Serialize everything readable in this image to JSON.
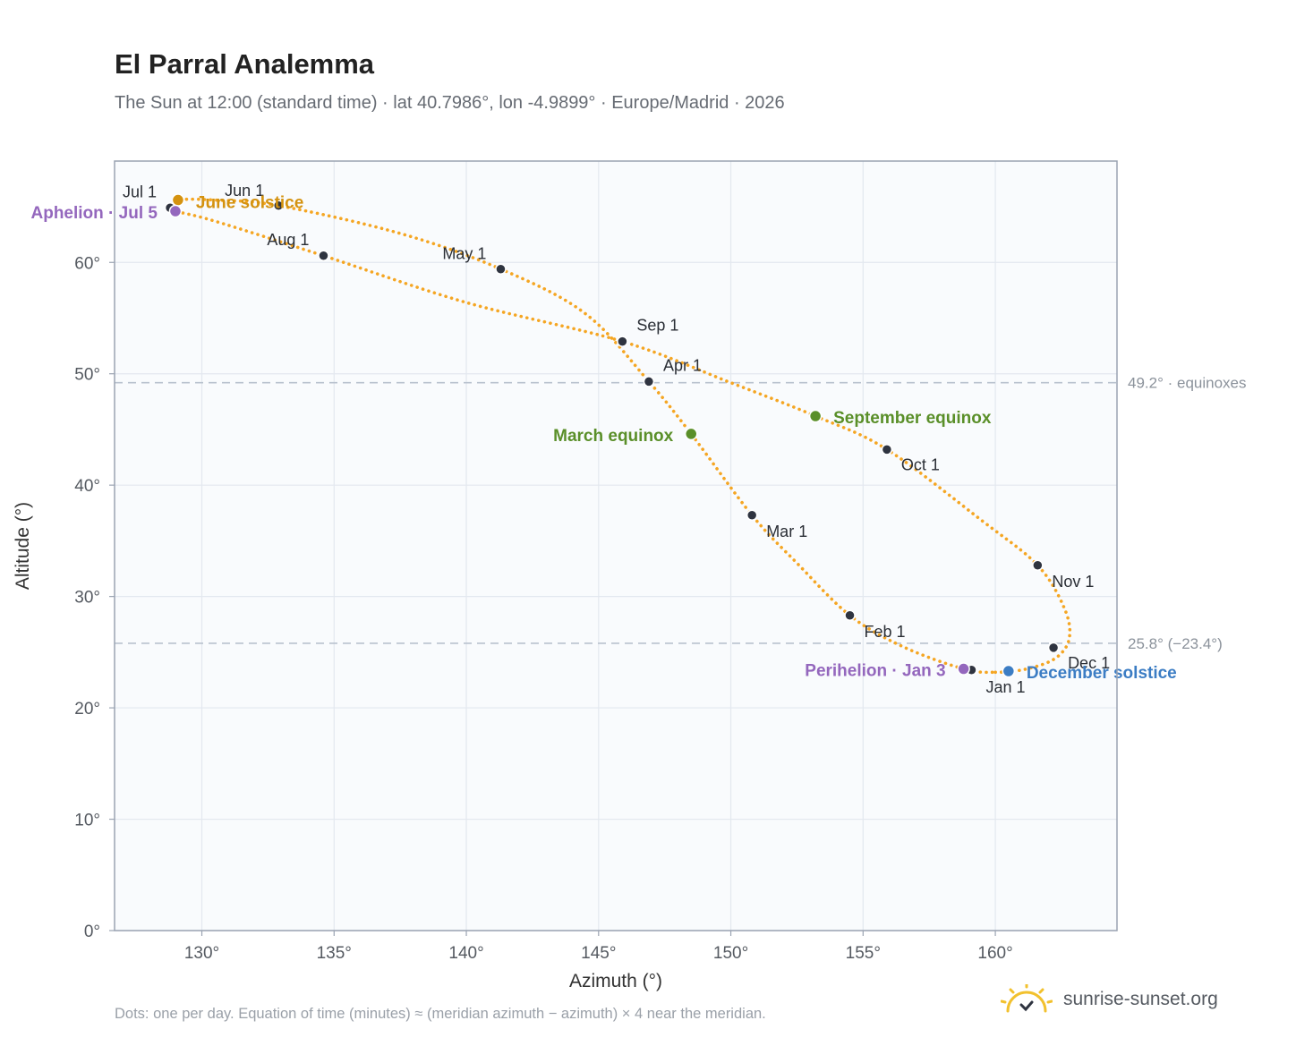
{
  "header": {
    "title": "El Parral Analemma",
    "subtitle": "The Sun at 12:00 (standard time) · lat 40.7986°, lon -4.9899° · Europe/Madrid · 2026"
  },
  "footer": {
    "note": "Dots: one per day. Equation of time (minutes) ≈ (meridian azimuth − azimuth) × 4 near the meridian.",
    "brand": "sunrise-sunset.org"
  },
  "colors": {
    "curve": "#f5a623",
    "month_dot": "#2f3440",
    "equinox": "#5a8f29",
    "june_solstice": "#d4920f",
    "december_solstice": "#3c7dc4",
    "apsis": "#9467bd",
    "brand_sun": "#f2c12e"
  },
  "chart_data": {
    "type": "scatter",
    "xlabel": "Azimuth (°)",
    "ylabel": "Altitude (°)",
    "xlim": [
      126.7,
      164.6
    ],
    "ylim": [
      0,
      69.1
    ],
    "xticks": [
      130,
      135,
      140,
      145,
      150,
      155,
      160
    ],
    "yticks": [
      0,
      10,
      20,
      30,
      40,
      50,
      60
    ],
    "grid": true,
    "reference_lines": [
      {
        "y": 49.2,
        "label": "49.2° · equinoxes"
      },
      {
        "y": 25.8,
        "label": "25.8° (−23.4°)"
      }
    ],
    "month_markers": [
      {
        "label": "Jan 1",
        "az": 159.1,
        "alt": 23.4
      },
      {
        "label": "Feb 1",
        "az": 154.5,
        "alt": 28.3
      },
      {
        "label": "Mar 1",
        "az": 150.8,
        "alt": 37.3
      },
      {
        "label": "Apr 1",
        "az": 146.9,
        "alt": 49.3
      },
      {
        "label": "May 1",
        "az": 141.3,
        "alt": 59.4
      },
      {
        "label": "Jun 1",
        "az": 132.9,
        "alt": 65.1
      },
      {
        "label": "Jul 1",
        "az": 128.8,
        "alt": 64.9
      },
      {
        "label": "Aug 1",
        "az": 134.6,
        "alt": 60.6
      },
      {
        "label": "Sep 1",
        "az": 145.9,
        "alt": 52.9
      },
      {
        "label": "Oct 1",
        "az": 155.9,
        "alt": 43.2
      },
      {
        "label": "Nov 1",
        "az": 161.6,
        "alt": 32.8
      },
      {
        "label": "Dec 1",
        "az": 162.2,
        "alt": 25.4
      }
    ],
    "events": [
      {
        "label": "March equinox",
        "az": 148.5,
        "alt": 44.6,
        "color": "#5a8f29"
      },
      {
        "label": "September equinox",
        "az": 153.2,
        "alt": 46.2,
        "color": "#5a8f29"
      },
      {
        "label": "June solstice",
        "az": 129.1,
        "alt": 65.6,
        "color": "#d4920f"
      },
      {
        "label": "December solstice",
        "az": 160.5,
        "alt": 23.3,
        "color": "#3c7dc4"
      },
      {
        "label": "Aphelion · Jul 5",
        "az": 129.0,
        "alt": 64.6,
        "color": "#9467bd"
      },
      {
        "label": "Perihelion · Jan 3",
        "az": 158.8,
        "alt": 23.5,
        "color": "#9467bd"
      }
    ],
    "curve_points": [
      [
        160.0,
        23.2
      ],
      [
        161.2,
        23.5
      ],
      [
        162.3,
        24.5
      ],
      [
        162.8,
        26.3
      ],
      [
        162.6,
        29.0
      ],
      [
        161.6,
        32.8
      ],
      [
        159.5,
        36.8
      ],
      [
        155.9,
        43.2
      ],
      [
        153.2,
        46.2
      ],
      [
        150.0,
        49.2
      ],
      [
        145.9,
        52.9
      ],
      [
        140.0,
        56.4
      ],
      [
        134.6,
        60.6
      ],
      [
        130.5,
        63.7
      ],
      [
        129.0,
        64.6
      ],
      [
        128.8,
        64.9
      ],
      [
        129.1,
        65.6
      ],
      [
        130.5,
        65.6
      ],
      [
        132.9,
        65.1
      ],
      [
        137.5,
        62.6
      ],
      [
        141.3,
        59.4
      ],
      [
        144.5,
        55.4
      ],
      [
        146.9,
        49.3
      ],
      [
        148.5,
        44.6
      ],
      [
        150.8,
        37.3
      ],
      [
        152.5,
        33.0
      ],
      [
        154.5,
        28.3
      ],
      [
        156.5,
        25.5
      ],
      [
        158.8,
        23.5
      ],
      [
        160.0,
        23.2
      ]
    ]
  }
}
